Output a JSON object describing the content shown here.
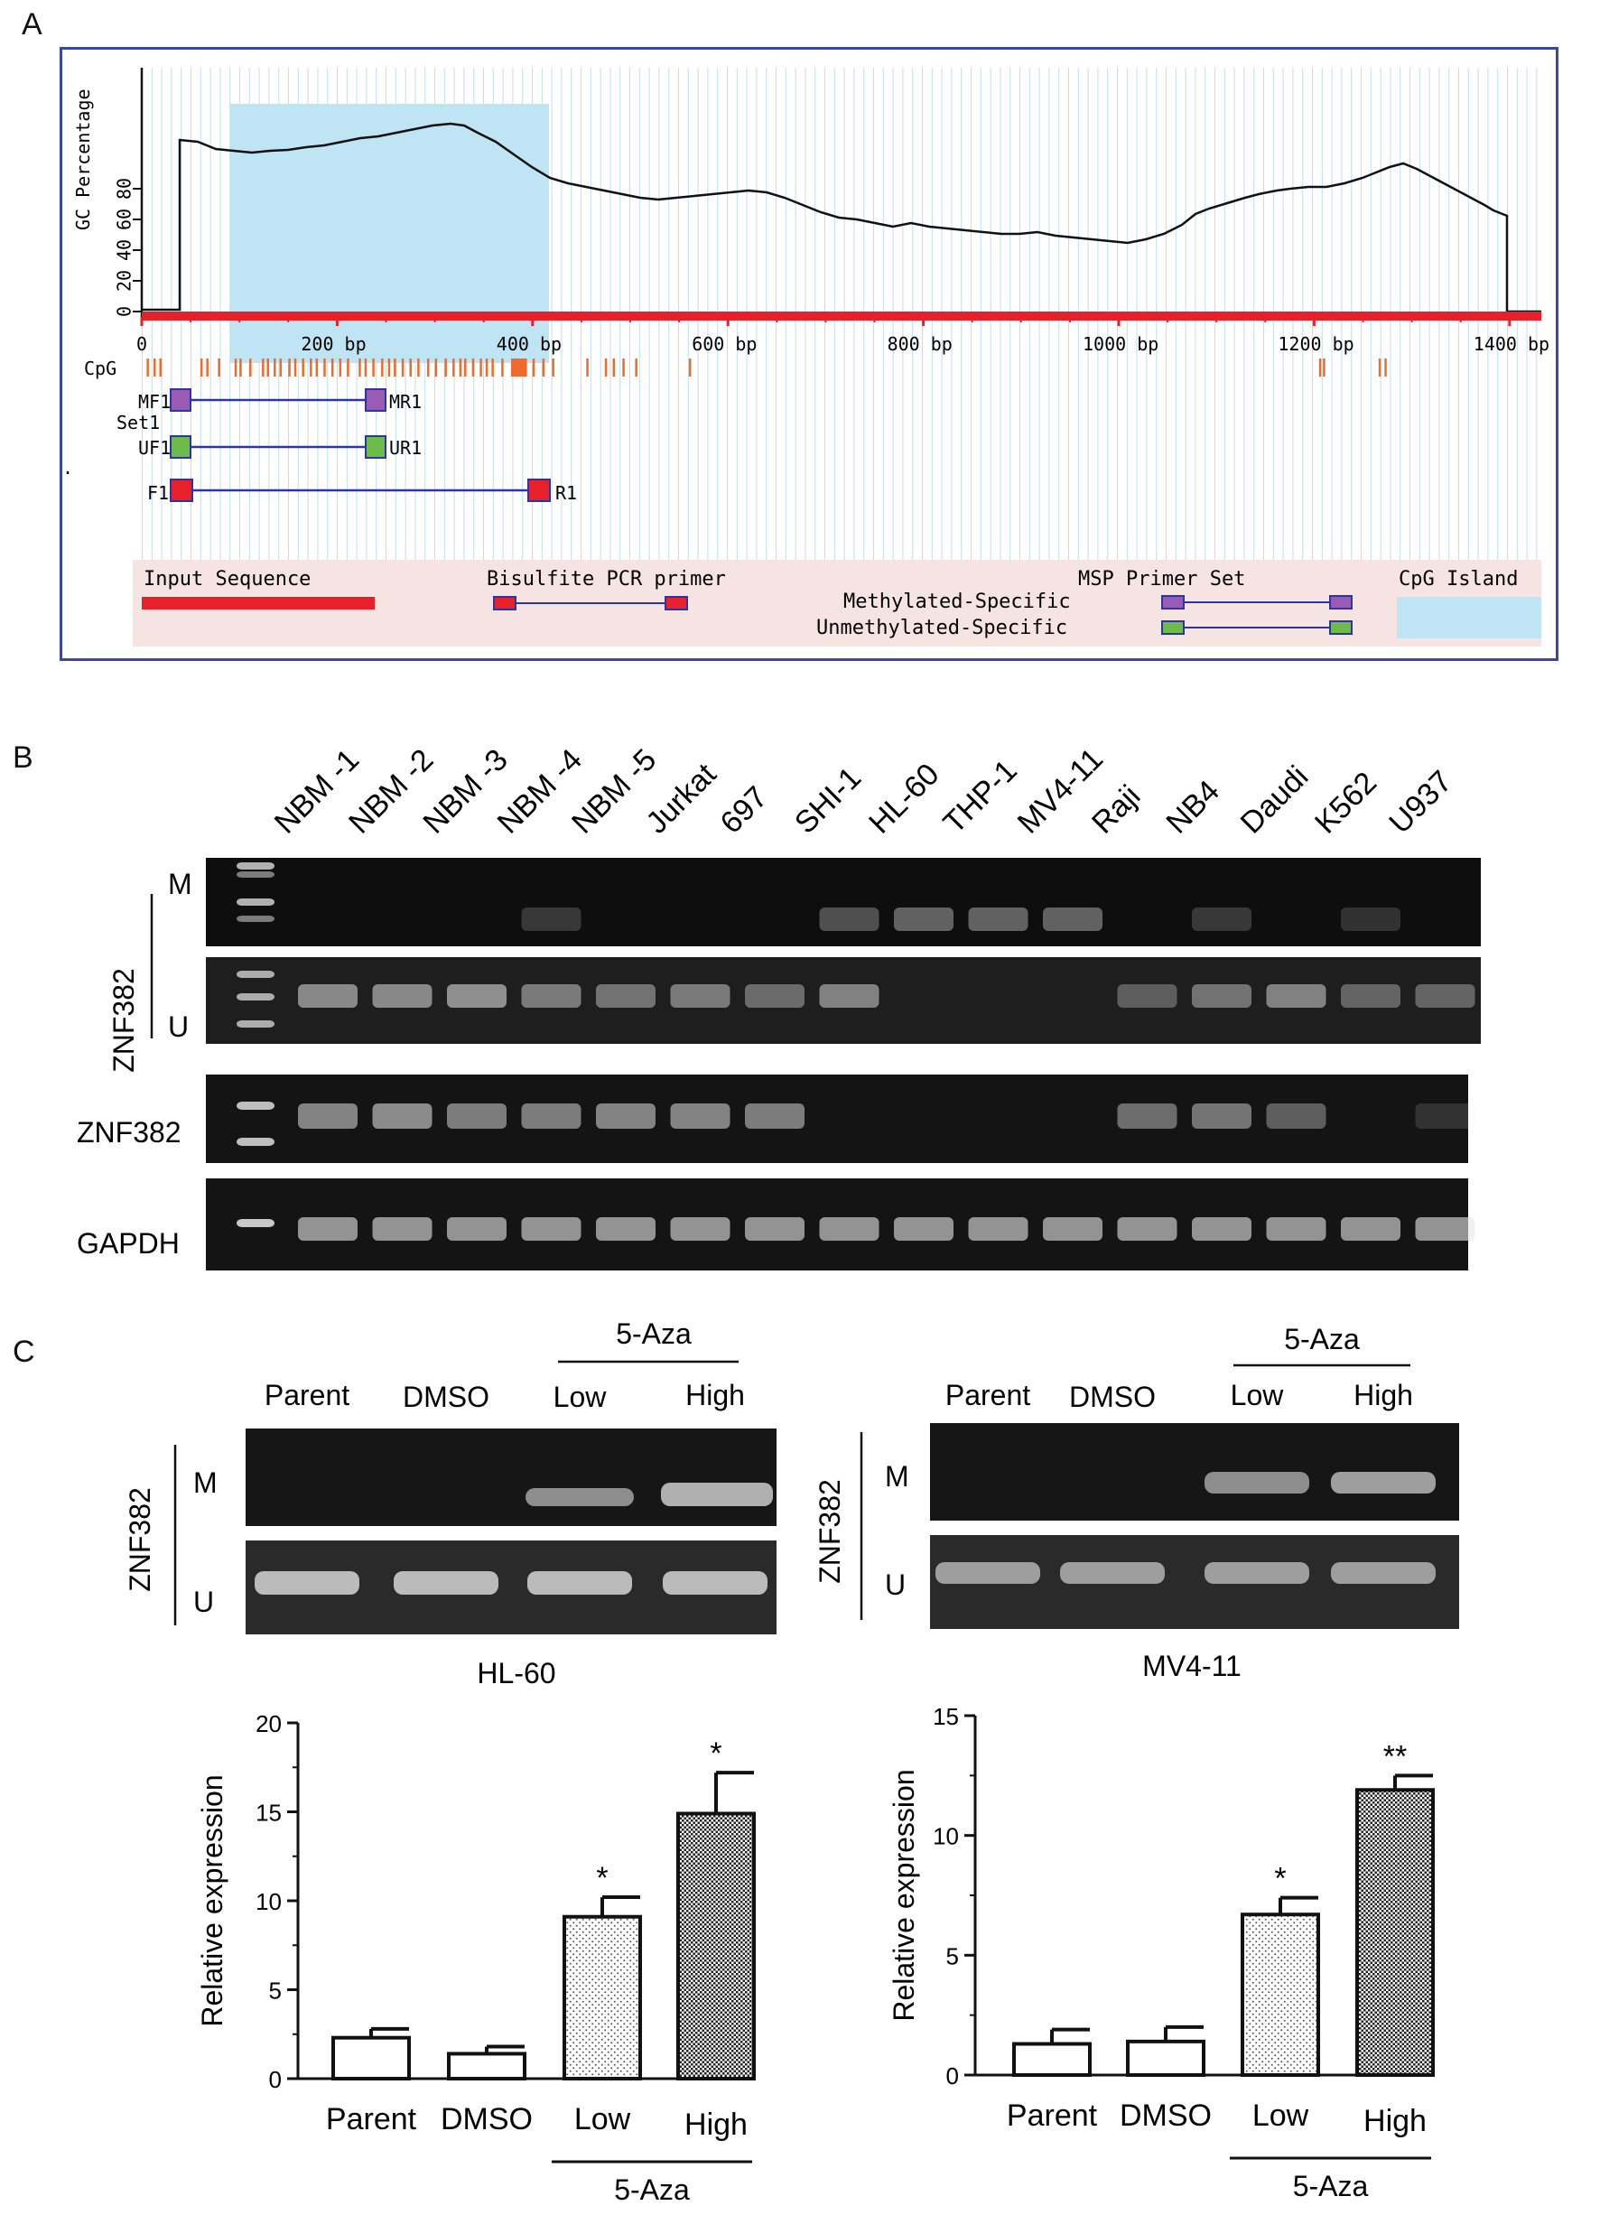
{
  "panels": {
    "a": "A",
    "b": "B",
    "c": "C"
  },
  "panel_a": {
    "ylabel": "GC Percentage",
    "y_ticks": [
      "0",
      "20",
      "40",
      "60",
      "80"
    ],
    "x_ticks": [
      "0",
      "200 bp",
      "400 bp",
      "600 bp",
      "800 bp",
      "1000 bp",
      "1200 bp",
      "1400 bp"
    ],
    "cpg_label": "CpG",
    "set_label": "Set1",
    "dot": ".",
    "primers": {
      "mf1": "MF1",
      "mr1": "MR1",
      "uf1": "UF1",
      "ur1": "UR1",
      "f1": "F1",
      "r1": "R1"
    },
    "legend": {
      "input_sequence": "Input Sequence",
      "bisulfite": "Bisulfite PCR primer",
      "msp": "MSP Primer Set",
      "methylated": "Methylated-Specific",
      "unmethylated": "Unmethylated-Specific",
      "cpg_island": "CpG Island"
    },
    "colors": {
      "input_sequence": "#e8202a",
      "cpg_island": "#bfe4f4",
      "methylated_primer": "#9b5bb5",
      "unmethylated_primer": "#6dbb4a",
      "bisulfite_primer": "#e8202a",
      "frame": "#3b47a6",
      "legend_bg": "#f5e4e2"
    }
  },
  "panel_b": {
    "lanes": [
      "NBM -1",
      "NBM -2",
      "NBM -3",
      "NBM -4",
      "NBM -5",
      "Jurkat",
      "697",
      "SHI-1",
      "HL-60",
      "THP-1",
      "MV4-11",
      "Raji",
      "NB4",
      "Daudi",
      "K562",
      "U937"
    ],
    "gene": "ZNF382",
    "m": "M",
    "u": "U",
    "expr_label": "ZNF382",
    "gapdh_label": "GAPDH"
  },
  "panel_c": {
    "left": {
      "gel": {
        "cols": [
          "Parent",
          "DMSO",
          "Low",
          "High"
        ],
        "treatment": "5-Aza",
        "gene": "ZNF382",
        "m": "M",
        "u": "U"
      }
    },
    "right": {
      "gel": {
        "cols": [
          "Parent",
          "DMSO",
          "Low",
          "High"
        ],
        "treatment": "5-Aza",
        "gene": "ZNF382",
        "m": "M",
        "u": "U"
      }
    }
  },
  "chart_data": [
    {
      "type": "bar",
      "title": "HL-60",
      "ylabel": "Relative expression",
      "xlabel": "",
      "categories": [
        "Parent",
        "DMSO",
        "Low",
        "High"
      ],
      "group_label": "5-Aza",
      "values": [
        2.3,
        1.4,
        9.1,
        14.9
      ],
      "errors": [
        0.5,
        0.4,
        1.1,
        2.3
      ],
      "significance": [
        "",
        "",
        "*",
        "*"
      ],
      "ylim": [
        0,
        20
      ],
      "yticks": [
        "0",
        "5",
        "10",
        "15",
        "20"
      ],
      "fills": [
        "open",
        "open",
        "dotted",
        "checkered"
      ]
    },
    {
      "type": "bar",
      "title": "MV4-11",
      "ylabel": "Relative expression",
      "xlabel": "",
      "categories": [
        "Parent",
        "DMSO",
        "Low",
        "High"
      ],
      "group_label": "5-Aza",
      "values": [
        1.3,
        1.4,
        6.7,
        11.9
      ],
      "errors": [
        0.6,
        0.6,
        0.7,
        0.6
      ],
      "significance": [
        "",
        "",
        "*",
        "**"
      ],
      "ylim": [
        0,
        15
      ],
      "yticks": [
        "0",
        "5",
        "10",
        "15"
      ],
      "fills": [
        "open",
        "open",
        "dotted",
        "checkered"
      ]
    }
  ]
}
